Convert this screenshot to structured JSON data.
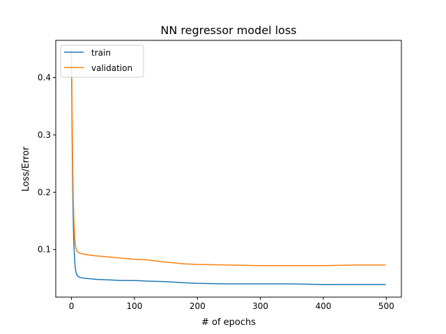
{
  "chart_data": {
    "type": "line",
    "title": "NN regressor model loss",
    "xlabel": "# of epochs",
    "ylabel": "Loss/Error",
    "xlim": [
      -25,
      524
    ],
    "ylim": [
      0.017,
      0.465
    ],
    "xticks": [
      0,
      100,
      200,
      300,
      400,
      500
    ],
    "yticks": [
      0.1,
      0.2,
      0.3,
      0.4
    ],
    "ytick_labels": [
      "0.1",
      "0.2",
      "0.3",
      "0.4"
    ],
    "grid": false,
    "legend_position": "top-left",
    "series": [
      {
        "name": "train",
        "color": "#1f77b4",
        "x": [
          0,
          1,
          2,
          3,
          4,
          5,
          6,
          7,
          8,
          10,
          12,
          15,
          20,
          30,
          40,
          60,
          80,
          100,
          120,
          150,
          180,
          200,
          250,
          300,
          350,
          400,
          450,
          499
        ],
        "y": [
          0.44,
          0.3,
          0.2,
          0.14,
          0.105,
          0.082,
          0.068,
          0.061,
          0.057,
          0.054,
          0.052,
          0.051,
          0.05,
          0.049,
          0.048,
          0.047,
          0.046,
          0.046,
          0.045,
          0.044,
          0.042,
          0.041,
          0.04,
          0.04,
          0.04,
          0.039,
          0.039,
          0.039
        ]
      },
      {
        "name": "validation",
        "color": "#ff7f0e",
        "x": [
          0,
          1,
          2,
          3,
          4,
          5,
          6,
          7,
          8,
          10,
          12,
          15,
          20,
          30,
          40,
          60,
          80,
          100,
          120,
          150,
          180,
          200,
          250,
          300,
          350,
          400,
          450,
          499
        ],
        "y": [
          0.45,
          0.33,
          0.24,
          0.18,
          0.145,
          0.122,
          0.11,
          0.103,
          0.099,
          0.096,
          0.094,
          0.093,
          0.092,
          0.09,
          0.089,
          0.087,
          0.085,
          0.083,
          0.082,
          0.078,
          0.075,
          0.074,
          0.073,
          0.072,
          0.072,
          0.072,
          0.073,
          0.073
        ]
      }
    ]
  }
}
